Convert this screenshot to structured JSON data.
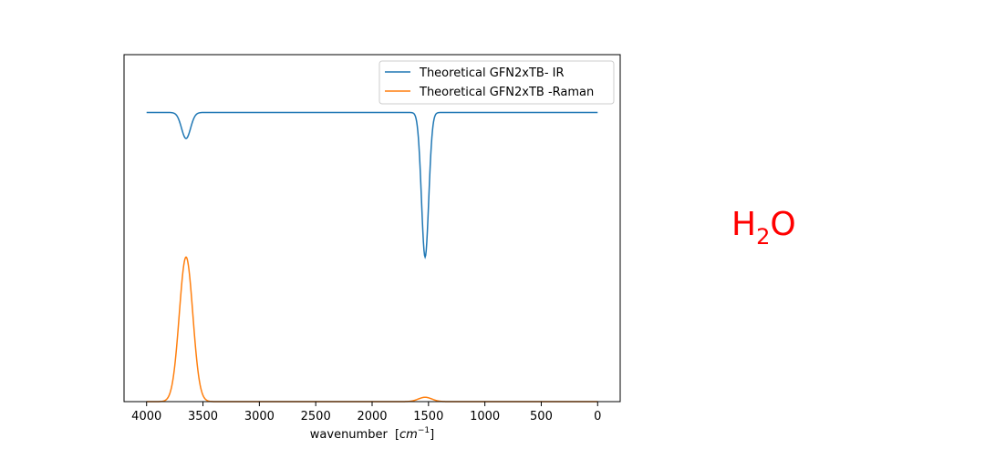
{
  "chart_data": {
    "type": "line",
    "xlabel": "wavenumber",
    "xlabel_unit_base": "cm",
    "xlabel_unit_exp": "−1",
    "xlim": [
      4200,
      -200
    ],
    "ylim": [
      0,
      1.2
    ],
    "x_ticks": [
      4000,
      3500,
      3000,
      2500,
      2000,
      1500,
      1000,
      500,
      0
    ],
    "y_ticks_visible": false,
    "grid": false,
    "legend_position": "top-right",
    "series": [
      {
        "name": "Theoretical GFN2xTB- IR",
        "color": "#1f77b4",
        "baseline": 1.0,
        "peaks": [
          {
            "center": 3650,
            "height": -0.09,
            "width": 40
          },
          {
            "center": 1530,
            "height": -0.5,
            "width": 32
          }
        ]
      },
      {
        "name": "Theoretical GFN2xTB -Raman",
        "color": "#ff7f0e",
        "baseline": 0.0,
        "peaks": [
          {
            "center": 3650,
            "height": 0.5,
            "width": 60
          },
          {
            "center": 1530,
            "height": 0.015,
            "width": 60
          }
        ]
      }
    ],
    "x_range": [
      4000,
      0
    ]
  },
  "annotation": {
    "molecule_main": "H",
    "molecule_sub": "2",
    "molecule_end": "O",
    "color": "#ff0000"
  }
}
